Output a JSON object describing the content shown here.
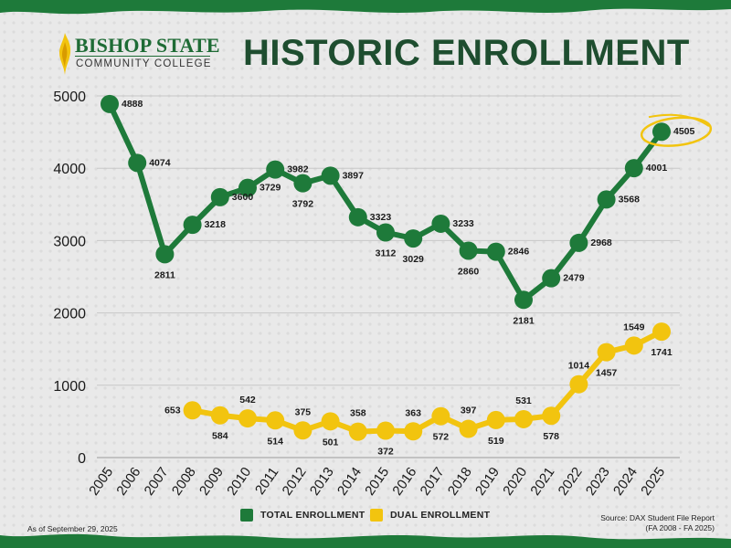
{
  "logo": {
    "line1": "BISHOP STATE",
    "line2": "COMMUNITY COLLEGE"
  },
  "title": "HISTORIC ENROLLMENT",
  "footer": {
    "as_of": "As of September 29, 2025",
    "source_line1": "Source:  DAX Student File Report",
    "source_line2": "(FA 2008 - FA 2025)"
  },
  "colors": {
    "total": "#1e7a3a",
    "dual": "#f2c40f",
    "title": "#1e4d2f",
    "highlight": "#f2c40f"
  },
  "chart_data": {
    "type": "line",
    "categories": [
      "2005",
      "2006",
      "2007",
      "2008",
      "2009",
      "2010",
      "2011",
      "2012",
      "2013",
      "2014",
      "2015",
      "2016",
      "2017",
      "2018",
      "2019",
      "2020",
      "2021",
      "2022",
      "2023",
      "2024",
      "2025"
    ],
    "ylim": [
      0,
      5000
    ],
    "yticks": [
      0,
      1000,
      2000,
      3000,
      4000,
      5000
    ],
    "grid": true,
    "legend_position": "bottom",
    "series": [
      {
        "name": "TOTAL ENROLLMENT",
        "color": "#1e7a3a",
        "values": [
          4888,
          4074,
          2811,
          3218,
          3600,
          3729,
          3982,
          3792,
          3897,
          3323,
          3112,
          3029,
          3233,
          2860,
          2846,
          2181,
          2479,
          2968,
          3568,
          4001,
          4505
        ],
        "label_positions": [
          "right",
          "right",
          "below",
          "right",
          "right",
          "right",
          "right",
          "below",
          "right",
          "right",
          "below",
          "below",
          "right",
          "below",
          "right",
          "below",
          "right",
          "right",
          "right",
          "right",
          "right"
        ]
      },
      {
        "name": "DUAL ENROLLMENT",
        "color": "#f2c40f",
        "values": [
          null,
          null,
          null,
          653,
          584,
          542,
          514,
          375,
          501,
          358,
          372,
          363,
          572,
          397,
          519,
          531,
          578,
          1014,
          1457,
          1549,
          1741
        ],
        "label_positions": [
          null,
          null,
          null,
          "left",
          "below",
          "above",
          "below",
          "above",
          "below",
          "above",
          "below",
          "above",
          "below",
          "above",
          "below",
          "above",
          "below",
          "above",
          "below",
          "above",
          "below"
        ]
      }
    ],
    "highlight": {
      "series": 0,
      "category": "2025"
    }
  }
}
